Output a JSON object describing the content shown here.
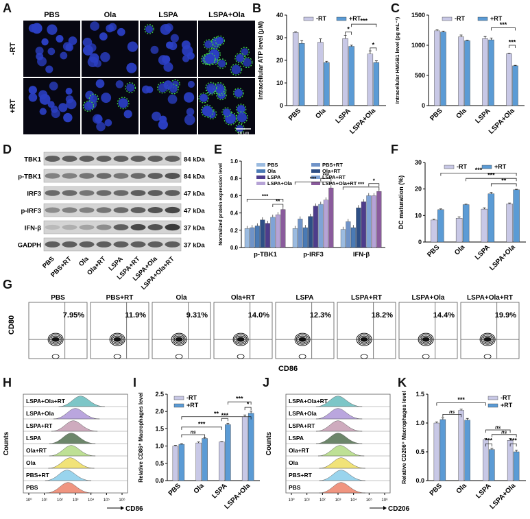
{
  "panel_letters": [
    "A",
    "B",
    "C",
    "D",
    "E",
    "F",
    "G",
    "H",
    "I",
    "J",
    "K"
  ],
  "colors": {
    "minus": "#c8c8e6",
    "plus": "#5b9bd5",
    "sig": "#222222",
    "nucleus": "#2b3fc4",
    "green": "#3fd24a"
  },
  "panelA": {
    "columns": [
      "PBS",
      "Ola",
      "LSPA",
      "LSPA+Ola"
    ],
    "rows": [
      "-RT",
      "+RT"
    ],
    "scale": "10 μm"
  },
  "panelD": {
    "rows": [
      {
        "name": "TBK1",
        "kda": "84 kDa"
      },
      {
        "name": "p-TBK1",
        "kda": "84 kDa"
      },
      {
        "name": "IRF3",
        "kda": "47 kDa"
      },
      {
        "name": "p-IRF3",
        "kda": "47 kDa"
      },
      {
        "name": "IFN-β",
        "kda": "37 kDa"
      },
      {
        "name": "GADPH",
        "kda": "37 kDa"
      }
    ],
    "lanes": [
      "PBS",
      "PBS+RT",
      "Ola",
      "Ola+RT",
      "LSPA",
      "LSPA+RT",
      "LSPA+Ola",
      "LSPA+Ola+RT"
    ]
  },
  "panelG": {
    "groups": [
      "PBS",
      "PBS+RT",
      "Ola",
      "Ola+RT",
      "LSPA",
      "LSPA+RT",
      "LSPA+Ola",
      "LSPA+Ola+RT"
    ],
    "percent": [
      "7.95%",
      "11.9%",
      "9.31%",
      "14.0%",
      "12.3%",
      "18.2%",
      "14.4%",
      "19.9%"
    ],
    "ylabel": "CD80",
    "xlabel": "CD86"
  },
  "panelH": {
    "rows": [
      "LSPA+Ola+RT",
      "LSPA+Ola",
      "LSPA+RT",
      "LSPA",
      "Ola+RT",
      "Ola",
      "PBS+RT",
      "PBS"
    ],
    "colors": [
      "#6fc0c2",
      "#b39ddb",
      "#c9a2b8",
      "#5d7a5a",
      "#b7dd8a",
      "#f0e06a",
      "#8fd0ec",
      "#ef8a73"
    ],
    "ylabel": "Counts",
    "xlabel": "CD86",
    "ticks": [
      "10⁰",
      "10¹",
      "10²",
      "10³",
      "10⁴",
      "10⁵",
      "10⁶"
    ]
  },
  "panelJ": {
    "rows": [
      "LSPA+Ola+RT",
      "LSPA+Ola",
      "LSPA+RT",
      "LSPA",
      "Ola+RT",
      "Ola",
      "PBS+RT",
      "PBS"
    ],
    "colors": [
      "#6fc0c2",
      "#b39ddb",
      "#c9a2b8",
      "#5d7a5a",
      "#b7dd8a",
      "#f0e06a",
      "#8fd0ec",
      "#ef8a73"
    ],
    "ylabel": "Counts",
    "xlabel": "CD206",
    "ticks": [
      "10⁰",
      "10¹",
      "10²",
      "10³",
      "10⁴",
      "10⁵",
      "10⁶"
    ]
  },
  "chart_data": [
    {
      "id": "B",
      "type": "bar",
      "ylabel": "Intracellular ATP level (μM)",
      "categories": [
        "PBS",
        "Ola",
        "LSPA",
        "LSPA+Ola"
      ],
      "ylim": [
        0,
        40
      ],
      "yticks": [
        0,
        10,
        20,
        30,
        40
      ],
      "legend": [
        "-RT",
        "+RT"
      ],
      "series": [
        {
          "name": "-RT",
          "values": [
            32.3,
            28.0,
            29.6,
            22.8
          ],
          "err": [
            0.3,
            1.5,
            1.5,
            1.4
          ]
        },
        {
          "name": "+RT",
          "values": [
            27.5,
            19.0,
            26.2,
            19.0
          ],
          "err": [
            1.2,
            0.6,
            0.5,
            0.8
          ]
        }
      ],
      "sig": [
        {
          "from": [
            2,
            0
          ],
          "to": [
            2,
            1
          ],
          "label": "*",
          "y": 32.5
        },
        {
          "from": [
            2,
            1
          ],
          "to": [
            3,
            1
          ],
          "label": "***",
          "y": 36
        },
        {
          "from": [
            3,
            0
          ],
          "to": [
            3,
            1
          ],
          "label": "*",
          "y": 25.5
        }
      ]
    },
    {
      "id": "C",
      "type": "bar",
      "ylabel": "Intracellular HMGB1 level (pg mL⁻¹)",
      "categories": [
        "PBS",
        "Ola",
        "LSPA",
        "LSPA+Ola"
      ],
      "ylim": [
        0,
        1500
      ],
      "yticks": [
        0,
        500,
        1000,
        1500
      ],
      "legend": [
        "-RT",
        "+RT"
      ],
      "series": [
        {
          "name": "-RT",
          "values": [
            1240,
            1140,
            1110,
            860
          ],
          "err": [
            15,
            30,
            35,
            8
          ]
        },
        {
          "name": "+RT",
          "values": [
            1220,
            1075,
            1090,
            660
          ],
          "err": [
            15,
            10,
            30,
            8
          ]
        }
      ],
      "sig": [
        {
          "from": [
            2,
            1
          ],
          "to": [
            3,
            1
          ],
          "label": "***",
          "y": 1290
        },
        {
          "from": [
            3,
            0
          ],
          "to": [
            3,
            1
          ],
          "label": "***",
          "y": 1000
        }
      ]
    },
    {
      "id": "E",
      "type": "bar",
      "ylabel": "Normalized protein expression level",
      "categories": [
        "p-TBK1",
        "p-IRF3",
        "IFN-β"
      ],
      "ylim": [
        0,
        1.0
      ],
      "yticks": [
        0.0,
        0.2,
        0.4,
        0.6,
        0.8,
        1.0
      ],
      "legend": [
        "PBS",
        "PBS+RT",
        "Ola",
        "Ola+RT",
        "LSPA",
        "LSPA+RT",
        "LSPA+Ola",
        "LSPA+Ola+RT"
      ],
      "series": [
        {
          "name": "PBS",
          "values": [
            0.22,
            0.22,
            0.21
          ],
          "color": "#9bbbe0"
        },
        {
          "name": "PBS+RT",
          "values": [
            0.23,
            0.33,
            0.3
          ],
          "color": "#6f93c8"
        },
        {
          "name": "Ola",
          "values": [
            0.25,
            0.23,
            0.23
          ],
          "color": "#4a7ab5"
        },
        {
          "name": "Ola+RT",
          "values": [
            0.32,
            0.36,
            0.46
          ],
          "color": "#2e4f86"
        },
        {
          "name": "LSPA",
          "values": [
            0.28,
            0.48,
            0.53
          ],
          "color": "#4d3c8c"
        },
        {
          "name": "LSPA+RT",
          "values": [
            0.35,
            0.5,
            0.6
          ],
          "color": "#7fa3d6"
        },
        {
          "name": "LSPA+Ola",
          "values": [
            0.38,
            0.55,
            0.6
          ],
          "color": "#b6a3d6"
        },
        {
          "name": "LSPA+Ola+RT",
          "values": [
            0.44,
            0.69,
            0.65
          ],
          "color": "#8a5b9c"
        }
      ],
      "sig": [
        {
          "g": 0,
          "a": 0,
          "b": 7,
          "label": "***",
          "y": 0.56
        },
        {
          "g": 0,
          "a": 5,
          "b": 7,
          "label": "**",
          "y": 0.5
        },
        {
          "g": 1,
          "a": 0,
          "b": 7,
          "label": "***",
          "y": 0.76
        },
        {
          "g": 1,
          "a": 5,
          "b": 7,
          "label": "***",
          "y": 0.8
        },
        {
          "g": 2,
          "a": 0,
          "b": 7,
          "label": "***",
          "y": 0.7
        },
        {
          "g": 2,
          "a": 5,
          "b": 7,
          "label": "*",
          "y": 0.74
        }
      ]
    },
    {
      "id": "F",
      "type": "bar",
      "ylabel": "DC maturation (%)",
      "categories": [
        "PBS",
        "Ola",
        "LSPA",
        "LSPA+Ola"
      ],
      "ylim": [
        0,
        30
      ],
      "yticks": [
        0,
        10,
        20,
        30
      ],
      "legend": [
        "-RT",
        "+RT"
      ],
      "series": [
        {
          "name": "-RT",
          "values": [
            8.3,
            9.0,
            12.4,
            14.4
          ],
          "err": [
            0.3,
            0.5,
            0.5,
            0.3
          ]
        },
        {
          "name": "+RT",
          "values": [
            12.2,
            14.1,
            18.2,
            19.7
          ],
          "err": [
            0.3,
            0.2,
            0.5,
            0.2
          ]
        }
      ],
      "sig": [
        {
          "from": [
            0,
            1
          ],
          "to": [
            3,
            1
          ],
          "label": "***",
          "y": 26
        },
        {
          "from": [
            1,
            1
          ],
          "to": [
            3,
            1
          ],
          "label": "***",
          "y": 24
        },
        {
          "from": [
            2,
            1
          ],
          "to": [
            3,
            1
          ],
          "label": "**",
          "y": 22
        }
      ]
    },
    {
      "id": "I",
      "type": "bar",
      "ylabel": "Relative CD86⁺ Macrophages level",
      "categories": [
        "PBS",
        "Ola",
        "LSPA",
        "LSPA+Ola"
      ],
      "ylim": [
        0,
        2.5
      ],
      "yticks": [
        0.0,
        0.5,
        1.0,
        1.5,
        2.0,
        2.5
      ],
      "legend": [
        "-RT",
        "+RT"
      ],
      "series": [
        {
          "name": "-RT",
          "values": [
            1.0,
            1.09,
            1.12,
            1.85
          ],
          "err": [
            0.02,
            0.03,
            0.01,
            0.05
          ]
        },
        {
          "name": "+RT",
          "values": [
            1.05,
            1.22,
            1.62,
            1.95
          ],
          "err": [
            0.02,
            0.02,
            0.04,
            0.06
          ]
        }
      ],
      "sig": [
        {
          "from": [
            0,
            1
          ],
          "to": [
            1,
            1
          ],
          "label": "ns",
          "y": 1.33
        },
        {
          "from": [
            0,
            1
          ],
          "to": [
            2,
            0
          ],
          "label": "***",
          "y": 1.55
        },
        {
          "from": [
            0,
            1
          ],
          "to": [
            3,
            1
          ],
          "label": "**",
          "y": 1.85
        },
        {
          "from": [
            2,
            0
          ],
          "to": [
            2,
            1
          ],
          "label": "***",
          "y": 1.8
        },
        {
          "from": [
            2,
            1
          ],
          "to": [
            3,
            1
          ],
          "label": "***",
          "y": 2.28
        },
        {
          "from": [
            3,
            0
          ],
          "to": [
            3,
            1
          ],
          "label": "*",
          "y": 2.12
        }
      ]
    },
    {
      "id": "K",
      "type": "bar",
      "ylabel": "Relative CD206⁺ Macrophages level",
      "categories": [
        "PBS",
        "Ola",
        "LSPA",
        "LSPA+Ola"
      ],
      "ylim": [
        0,
        1.5
      ],
      "yticks": [
        0.0,
        0.5,
        1.0,
        1.5
      ],
      "legend": [
        "-RT",
        "+RT"
      ],
      "series": [
        {
          "name": "-RT",
          "values": [
            1.0,
            1.22,
            0.71,
            0.7
          ],
          "err": [
            0.02,
            0.02,
            0.02,
            0.03
          ]
        },
        {
          "name": "+RT",
          "values": [
            1.06,
            1.05,
            0.54,
            0.5
          ],
          "err": [
            0.03,
            0.03,
            0.02,
            0.03
          ]
        }
      ],
      "sig": [
        {
          "from": [
            0,
            1
          ],
          "to": [
            1,
            0
          ],
          "label": "ns",
          "y": 1.15
        },
        {
          "from": [
            0,
            0
          ],
          "to": [
            2,
            0
          ],
          "label": "***",
          "y": 1.35
        },
        {
          "from": [
            2,
            0
          ],
          "to": [
            2,
            1
          ],
          "label": "***",
          "y": 0.64
        },
        {
          "from": [
            3,
            0
          ],
          "to": [
            3,
            1
          ],
          "label": "***",
          "y": 0.64
        },
        {
          "from": [
            2,
            0
          ],
          "to": [
            3,
            0
          ],
          "label": "ns",
          "y": 0.88
        },
        {
          "from": [
            2,
            1
          ],
          "to": [
            3,
            1
          ],
          "label": "ns",
          "y": 0.8
        }
      ]
    }
  ]
}
